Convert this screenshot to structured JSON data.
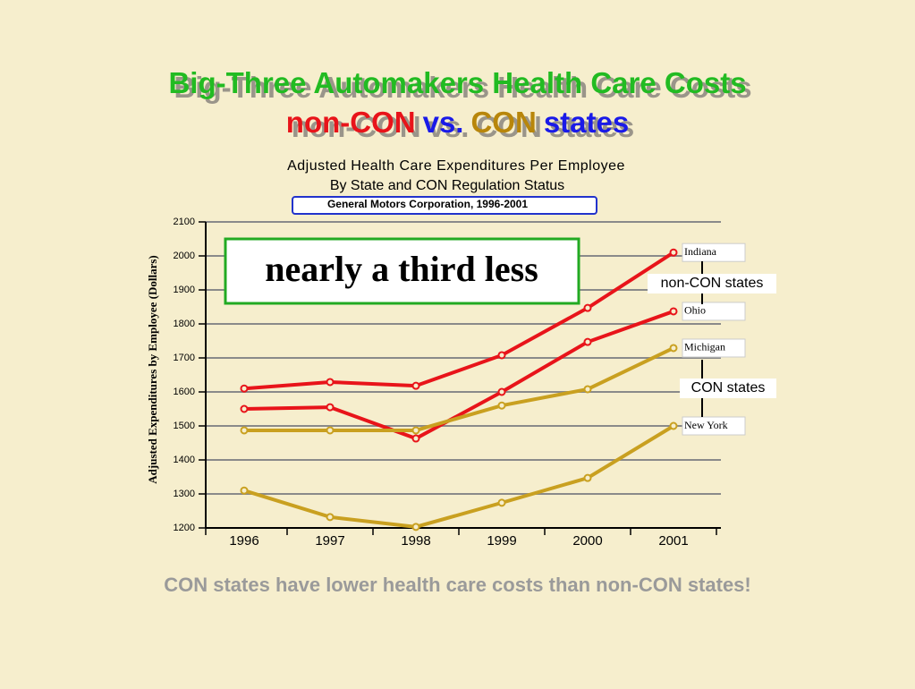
{
  "slide": {
    "title": "Big-Three Automakers Health Care Costs",
    "subtitle_parts": [
      {
        "text": "non-CON",
        "color": "#e8141a"
      },
      {
        "text": "vs.",
        "color": "#1a1ae8"
      },
      {
        "text": "CON",
        "color": "#b8860b"
      },
      {
        "text": "states",
        "color": "#1a1ae8"
      }
    ],
    "footer": "CON states have lower health care costs than non-CON states!"
  },
  "chart_data": {
    "type": "line",
    "title": "Adjusted Health Care Expenditures Per Employee",
    "subtitle": "By State and CON Regulation Status",
    "source": "General Motors Corporation, 1996-2001",
    "y_label": "Adjusted Expenditures by Employee (Dollars)",
    "annotation": "nearly a third less",
    "group_labels": [
      "non-CON states",
      "CON states"
    ],
    "categories": [
      "1996",
      "1997",
      "1998",
      "1999",
      "2000",
      "2001"
    ],
    "series": [
      {
        "name": "Indiana",
        "color": "#e8141a",
        "values": [
          1610,
          1629,
          1618,
          1708,
          1847,
          2010
        ]
      },
      {
        "name": "Ohio",
        "color": "#e8141a",
        "values": [
          1550,
          1555,
          1463,
          1600,
          1747,
          1837
        ]
      },
      {
        "name": "Michigan",
        "color": "#c9a020",
        "values": [
          1487,
          1487,
          1487,
          1560,
          1608,
          1729
        ]
      },
      {
        "name": "New York",
        "color": "#c9a020",
        "values": [
          1310,
          1232,
          1203,
          1274,
          1347,
          1500
        ]
      }
    ],
    "ylim": [
      1200,
      2100
    ],
    "yticks": [
      1200,
      1300,
      1400,
      1500,
      1600,
      1700,
      1800,
      1900,
      2000,
      2100
    ],
    "grid": true
  }
}
